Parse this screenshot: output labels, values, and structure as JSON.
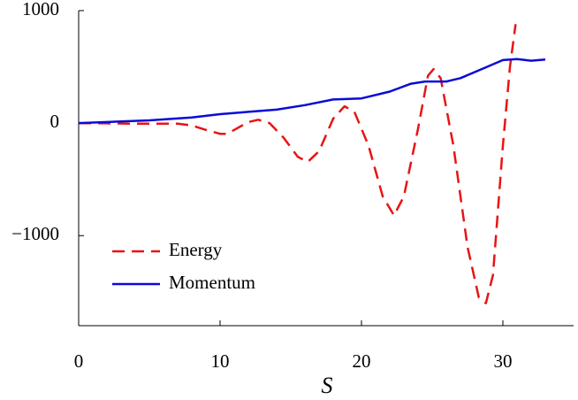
{
  "chart_data": {
    "type": "line",
    "x_label": "S",
    "xlim": [
      0,
      35
    ],
    "xticks": [
      0,
      10,
      20,
      30
    ],
    "ylim": [
      -1800,
      1000
    ],
    "yticks": [
      {
        "value": -1000,
        "label": "−1000"
      },
      0,
      1000
    ],
    "legend": "lower-left",
    "series": [
      {
        "name": "Energy",
        "color": "#e81414",
        "dash": true,
        "x": [
          0,
          2,
          4,
          6,
          7,
          8,
          9,
          10,
          10.5,
          11,
          12,
          12.7,
          13.5,
          14.5,
          15.5,
          16.2,
          17,
          18,
          18.8,
          19.5,
          20.5,
          21.5,
          22.3,
          23,
          24,
          24.7,
          25.1,
          25.6,
          26.5,
          27.5,
          28.3,
          28.8,
          29.3,
          30,
          30.5,
          30.9
        ],
        "values": [
          0,
          -2,
          -5,
          -5,
          -5,
          -20,
          -60,
          -95,
          -95,
          -60,
          10,
          30,
          0,
          -130,
          -300,
          -345,
          -250,
          40,
          150,
          100,
          -200,
          -650,
          -820,
          -650,
          -50,
          420,
          480,
          400,
          -200,
          -1100,
          -1550,
          -1600,
          -1350,
          -200,
          500,
          880
        ]
      },
      {
        "name": "Momentum",
        "color": "#0a0ad8",
        "dash": false,
        "x": [
          0,
          5,
          8,
          10,
          12,
          14,
          16,
          18,
          20,
          22,
          23.5,
          24.5,
          26,
          27,
          28.5,
          30,
          31,
          32,
          33
        ],
        "values": [
          0,
          25,
          50,
          80,
          100,
          120,
          160,
          210,
          220,
          280,
          350,
          370,
          370,
          400,
          480,
          560,
          570,
          555,
          565
        ]
      }
    ]
  }
}
